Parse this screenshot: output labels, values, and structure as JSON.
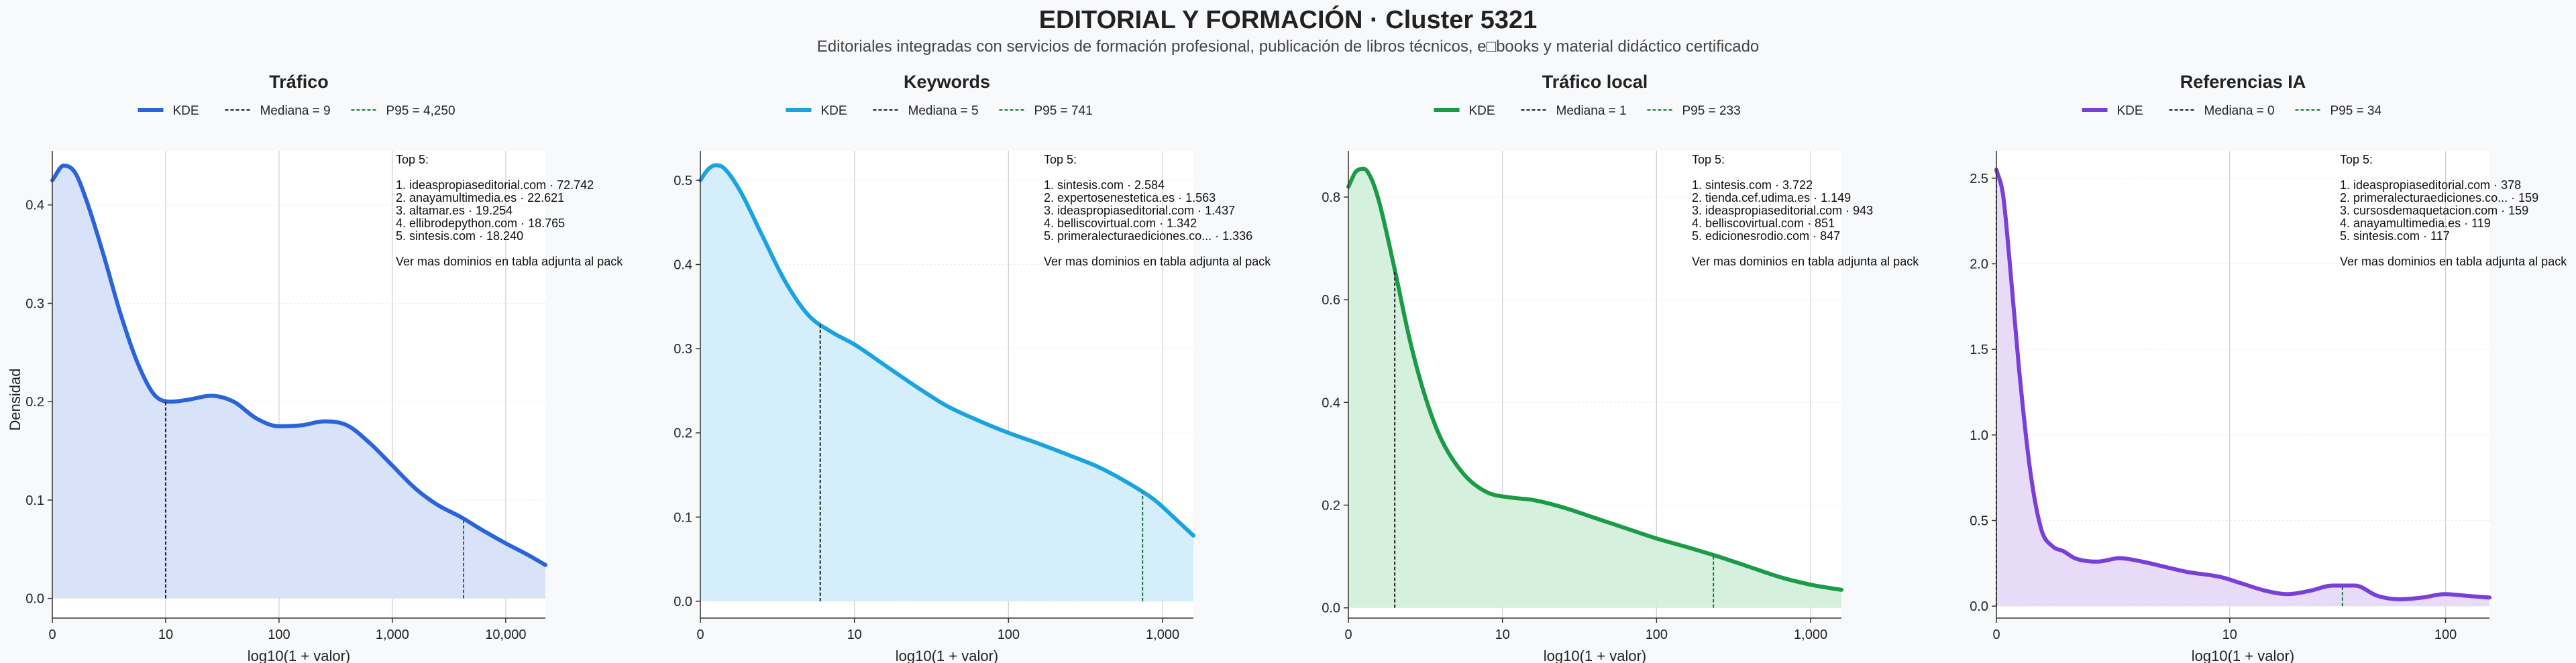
{
  "header": {
    "title": "EDITORIAL Y FORMACIÓN · Cluster 5321",
    "subtitle": "Editoriales integradas con servicios de formación profesional, publicación de libros técnicos, e□books y material didáctico certificado"
  },
  "shared": {
    "ylabel": "Densidad",
    "xlabel": "log10(1 + valor)",
    "top_heading": "Top 5:",
    "footer_note": "Ver mas dominios en tabla adjunta al pack",
    "kde_label": "KDE"
  },
  "colors": {
    "background": "#f8f9fb",
    "plot_bg": "#ffffff",
    "grid": "#d0d0d0",
    "median": "#222222",
    "p95": "#1a7a2e"
  },
  "chart_data": [
    {
      "type": "area",
      "title": "Tráfico",
      "color": "#2b63d9",
      "fill": "#d6e0f8",
      "legend": [
        "KDE",
        "Mediana = 9",
        "P95 = 4,250"
      ],
      "xlabel": "log10(1 + valor)",
      "ylabel": "Densidad",
      "xlim": [
        0,
        4.35
      ],
      "ylim": [
        -0.02,
        0.455
      ],
      "yticks": [
        0,
        0.1,
        0.2,
        0.3,
        0.4
      ],
      "ytick_labels": [
        "0.0",
        "0.1",
        "0.2",
        "0.3",
        "0.4"
      ],
      "xticks": [
        0,
        1,
        2,
        3,
        4
      ],
      "xtick_labels": [
        "0",
        "10",
        "100",
        "1,000",
        "10,000"
      ],
      "median_x": 1.0,
      "p95_x": 3.628,
      "x": [
        0,
        0.1,
        0.2,
        0.3,
        0.45,
        0.6,
        0.75,
        0.9,
        1.05,
        1.2,
        1.4,
        1.6,
        1.8,
        2.0,
        2.2,
        2.4,
        2.6,
        2.8,
        3.0,
        3.2,
        3.4,
        3.6,
        3.8,
        4.0,
        4.2,
        4.35
      ],
      "y": [
        0.425,
        0.44,
        0.433,
        0.405,
        0.35,
        0.29,
        0.24,
        0.207,
        0.2,
        0.202,
        0.206,
        0.2,
        0.183,
        0.175,
        0.176,
        0.18,
        0.176,
        0.158,
        0.135,
        0.112,
        0.095,
        0.083,
        0.069,
        0.056,
        0.044,
        0.034
      ],
      "top5": [
        "1. ideaspropiaseditorial.com · 72.742",
        "2. anayamultimedia.es · 22.621",
        "3. altamar.es · 19.254",
        "4. ellibrodepython.com · 18.765",
        "5. sintesis.com · 18.240"
      ]
    },
    {
      "type": "area",
      "title": "Keywords",
      "color": "#1ba3e0",
      "fill": "#d2eefb",
      "legend": [
        "KDE",
        "Mediana = 5",
        "P95 = 741"
      ],
      "xlabel": "log10(1 + valor)",
      "ylabel": "",
      "xlim": [
        0,
        3.2
      ],
      "ylim": [
        -0.02,
        0.535
      ],
      "yticks": [
        0,
        0.1,
        0.2,
        0.3,
        0.4,
        0.5
      ],
      "ytick_labels": [
        "0.0",
        "0.1",
        "0.2",
        "0.3",
        "0.4",
        "0.5"
      ],
      "xticks": [
        0,
        1,
        2,
        3
      ],
      "xtick_labels": [
        "0",
        "10",
        "100",
        "1,000"
      ],
      "median_x": 0.778,
      "p95_x": 2.87,
      "x": [
        0,
        0.05,
        0.1,
        0.15,
        0.25,
        0.4,
        0.55,
        0.7,
        0.85,
        1.0,
        1.2,
        1.4,
        1.6,
        1.8,
        2.0,
        2.2,
        2.4,
        2.6,
        2.8,
        2.95,
        3.1,
        3.2
      ],
      "y": [
        0.5,
        0.513,
        0.518,
        0.515,
        0.49,
        0.435,
        0.38,
        0.34,
        0.32,
        0.305,
        0.28,
        0.255,
        0.232,
        0.215,
        0.2,
        0.187,
        0.173,
        0.158,
        0.138,
        0.12,
        0.095,
        0.078
      ],
      "top5": [
        "1. sintesis.com · 2.584",
        "2. expertosenestetica.es · 1.563",
        "3. ideaspropiaseditorial.com · 1.437",
        "4. belliscovirtual.com · 1.342",
        "5. primeralecturaediciones.co... · 1.336"
      ]
    },
    {
      "type": "area",
      "title": "Tráfico local",
      "color": "#1a9b46",
      "fill": "#d3efdb",
      "legend": [
        "KDE",
        "Mediana = 1",
        "P95 = 233"
      ],
      "xlabel": "log10(1 + valor)",
      "ylabel": "",
      "xlim": [
        0,
        3.2
      ],
      "ylim": [
        -0.02,
        0.89
      ],
      "yticks": [
        0,
        0.2,
        0.4,
        0.6,
        0.8
      ],
      "ytick_labels": [
        "0.0",
        "0.2",
        "0.4",
        "0.6",
        "0.8"
      ],
      "xticks": [
        0,
        1,
        2,
        3
      ],
      "xtick_labels": [
        "0",
        "10",
        "100",
        "1,000"
      ],
      "median_x": 0.301,
      "p95_x": 2.369,
      "x": [
        0,
        0.05,
        0.1,
        0.15,
        0.2,
        0.3,
        0.4,
        0.5,
        0.6,
        0.75,
        0.9,
        1.05,
        1.2,
        1.4,
        1.6,
        1.8,
        2.0,
        2.2,
        2.4,
        2.6,
        2.8,
        3.0,
        3.2
      ],
      "y": [
        0.82,
        0.85,
        0.855,
        0.835,
        0.79,
        0.66,
        0.52,
        0.41,
        0.33,
        0.26,
        0.225,
        0.215,
        0.21,
        0.195,
        0.175,
        0.155,
        0.135,
        0.118,
        0.1,
        0.08,
        0.06,
        0.045,
        0.035
      ],
      "top5": [
        "1. sintesis.com · 3.722",
        "2. tienda.cef.udima.es · 1.149",
        "3. ideaspropiaseditorial.com · 943",
        "4. belliscovirtual.com · 851",
        "5. edicionesrodio.com · 847"
      ]
    },
    {
      "type": "area",
      "title": "Referencias IA",
      "color": "#7a3fd9",
      "fill": "#e6d9f7",
      "legend": [
        "KDE",
        "Mediana = 0",
        "P95 = 34"
      ],
      "xlabel": "log10(1 + valor)",
      "ylabel": "",
      "xlim": [
        0,
        2.2
      ],
      "ylim": [
        -0.07,
        2.66
      ],
      "yticks": [
        0,
        0.5,
        1.0,
        1.5,
        2.0,
        2.5
      ],
      "ytick_labels": [
        "0.0",
        "0.5",
        "1.0",
        "1.5",
        "2.0",
        "2.5"
      ],
      "xticks": [
        0,
        1.041,
        2.004
      ],
      "xtick_labels": [
        "0",
        "10",
        "100"
      ],
      "median_x": 0,
      "p95_x": 1.544,
      "x": [
        0,
        0.03,
        0.06,
        0.1,
        0.15,
        0.2,
        0.25,
        0.3,
        0.35,
        0.45,
        0.55,
        0.65,
        0.75,
        0.85,
        1.0,
        1.1,
        1.2,
        1.3,
        1.4,
        1.5,
        1.6,
        1.7,
        1.8,
        1.9,
        2.0,
        2.1,
        2.2
      ],
      "y": [
        2.55,
        2.4,
        2.0,
        1.4,
        0.8,
        0.45,
        0.35,
        0.32,
        0.28,
        0.26,
        0.28,
        0.26,
        0.23,
        0.2,
        0.17,
        0.13,
        0.09,
        0.07,
        0.09,
        0.12,
        0.12,
        0.06,
        0.04,
        0.05,
        0.07,
        0.06,
        0.05
      ],
      "top5": [
        "1. ideaspropiaseditorial.com · 378",
        "2. primeralecturaediciones.co... · 159",
        "3. cursosdemaquetacion.com · 159",
        "4. anayamultimedia.es · 119",
        "5. sintesis.com · 117"
      ]
    }
  ]
}
